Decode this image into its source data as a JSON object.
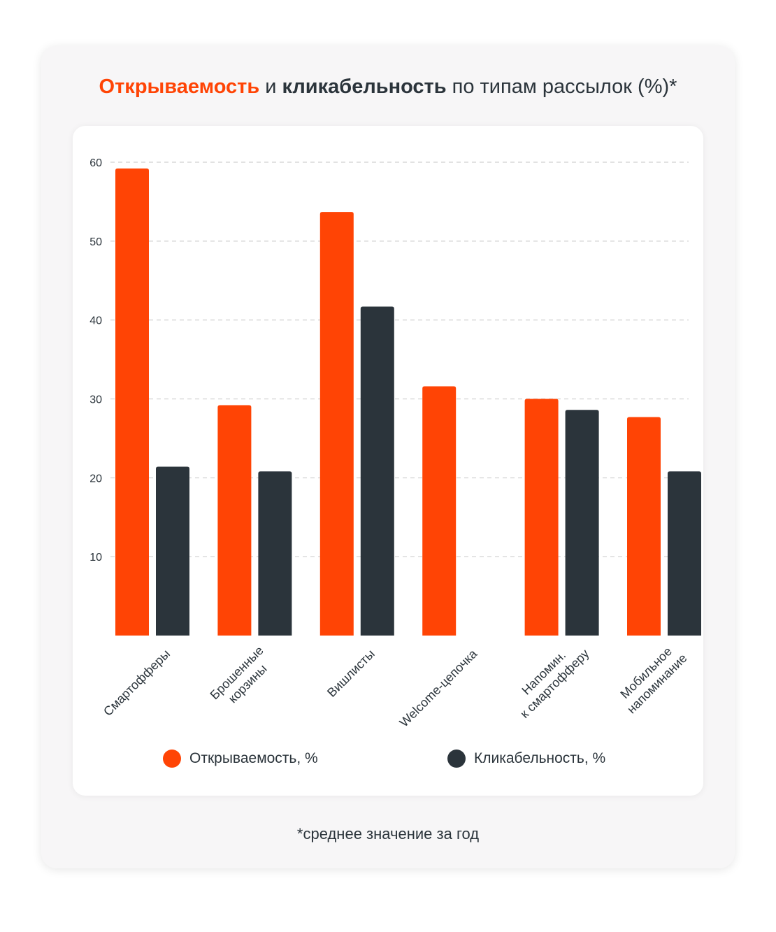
{
  "title": {
    "part1": "Открываемость",
    "part2": " и ",
    "part3": "кликабельность",
    "part4": " по типам рассылок (%)*"
  },
  "footnote": "*среднее значение за год",
  "colors": {
    "open": "#ff4405",
    "click": "#2b343b",
    "grid": "#d9d9d9",
    "text": "#2b343b"
  },
  "chart_data": {
    "type": "bar",
    "title": "Открываемость и кликабельность по типам рассылок (%)*",
    "xlabel": "",
    "ylabel": "",
    "ylim": [
      0,
      60
    ],
    "yticks": [
      10,
      20,
      30,
      40,
      50,
      60
    ],
    "grid": true,
    "legend_position": "bottom",
    "categories": [
      [
        "Смартофферы"
      ],
      [
        "Брошенные",
        "корзины"
      ],
      [
        "Вишлисты"
      ],
      [
        "Welcome-цепочка"
      ],
      [
        "Напомин.",
        "к смартофферу"
      ],
      [
        "Мобильное",
        "напоминание"
      ]
    ],
    "series": [
      {
        "name": "Открываемость, %",
        "values": [
          59.2,
          29.2,
          53.7,
          31.6,
          30.0,
          27.7
        ]
      },
      {
        "name": "Кликабельность, %",
        "values": [
          21.4,
          20.8,
          41.7,
          null,
          28.6,
          20.8
        ]
      }
    ]
  }
}
